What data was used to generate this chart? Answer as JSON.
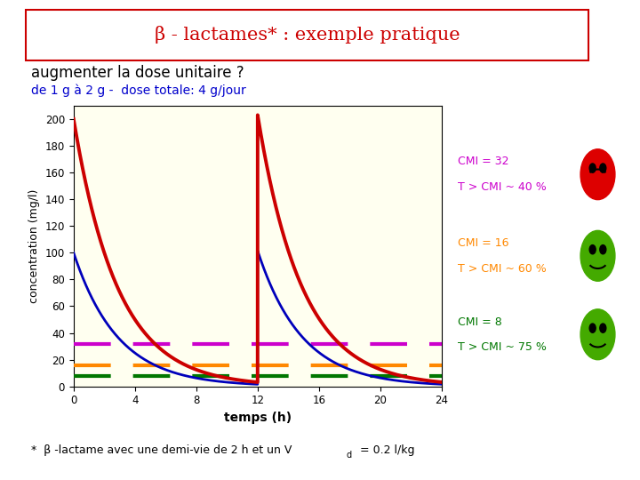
{
  "title": "β - lactames* : exemple pratique",
  "subtitle": "augmenter la dose unitaire ?",
  "subtitle2": "de 1 g à 2 g -  dose totale: 4 g/jour",
  "footnote_part1": "*  β -lactame avec une demi-vie de 2 h et un V",
  "footnote_sub": "d",
  "footnote_part2": " = 0.2 l/kg",
  "xlabel": "temps (h)",
  "ylabel": "concentration (mg/l)",
  "bg_color": "#FFFFF0",
  "page_bg": "#FFFFFF",
  "title_color": "#CC0000",
  "title_bg": "#FFFFFF",
  "title_border": "#CC0000",
  "subtitle_color": "#000000",
  "subtitle2_color": "#0000CC",
  "ylim": [
    0,
    210
  ],
  "xlim": [
    0,
    24
  ],
  "xticks": [
    0,
    4,
    8,
    12,
    16,
    20,
    24
  ],
  "yticks": [
    0,
    20,
    40,
    60,
    80,
    100,
    120,
    140,
    160,
    180,
    200
  ],
  "cmi32": 32,
  "cmi16": 16,
  "cmi8": 8,
  "cmi32_color": "#CC00CC",
  "cmi16_color": "#FF8800",
  "cmi8_color": "#007700",
  "red_line_color": "#CC0000",
  "blue_line_color": "#0000BB",
  "cmi32_text": "CMI = 32",
  "cmi32_pct": "T > CMI ~ 40 %",
  "cmi16_text": "CMI = 16",
  "cmi16_pct": "T > CMI ~ 60 %",
  "cmi8_text": "CMI = 8",
  "cmi8_pct": "T > CMI ~ 75 %",
  "face_red_color": "#DD0000",
  "face_green_color": "#44AA00",
  "half_life": 2,
  "c0_red": 200.0,
  "c0_blue": 100.0,
  "red_dose_times": [
    0,
    12
  ],
  "blue_dose_times": [
    0,
    12
  ]
}
